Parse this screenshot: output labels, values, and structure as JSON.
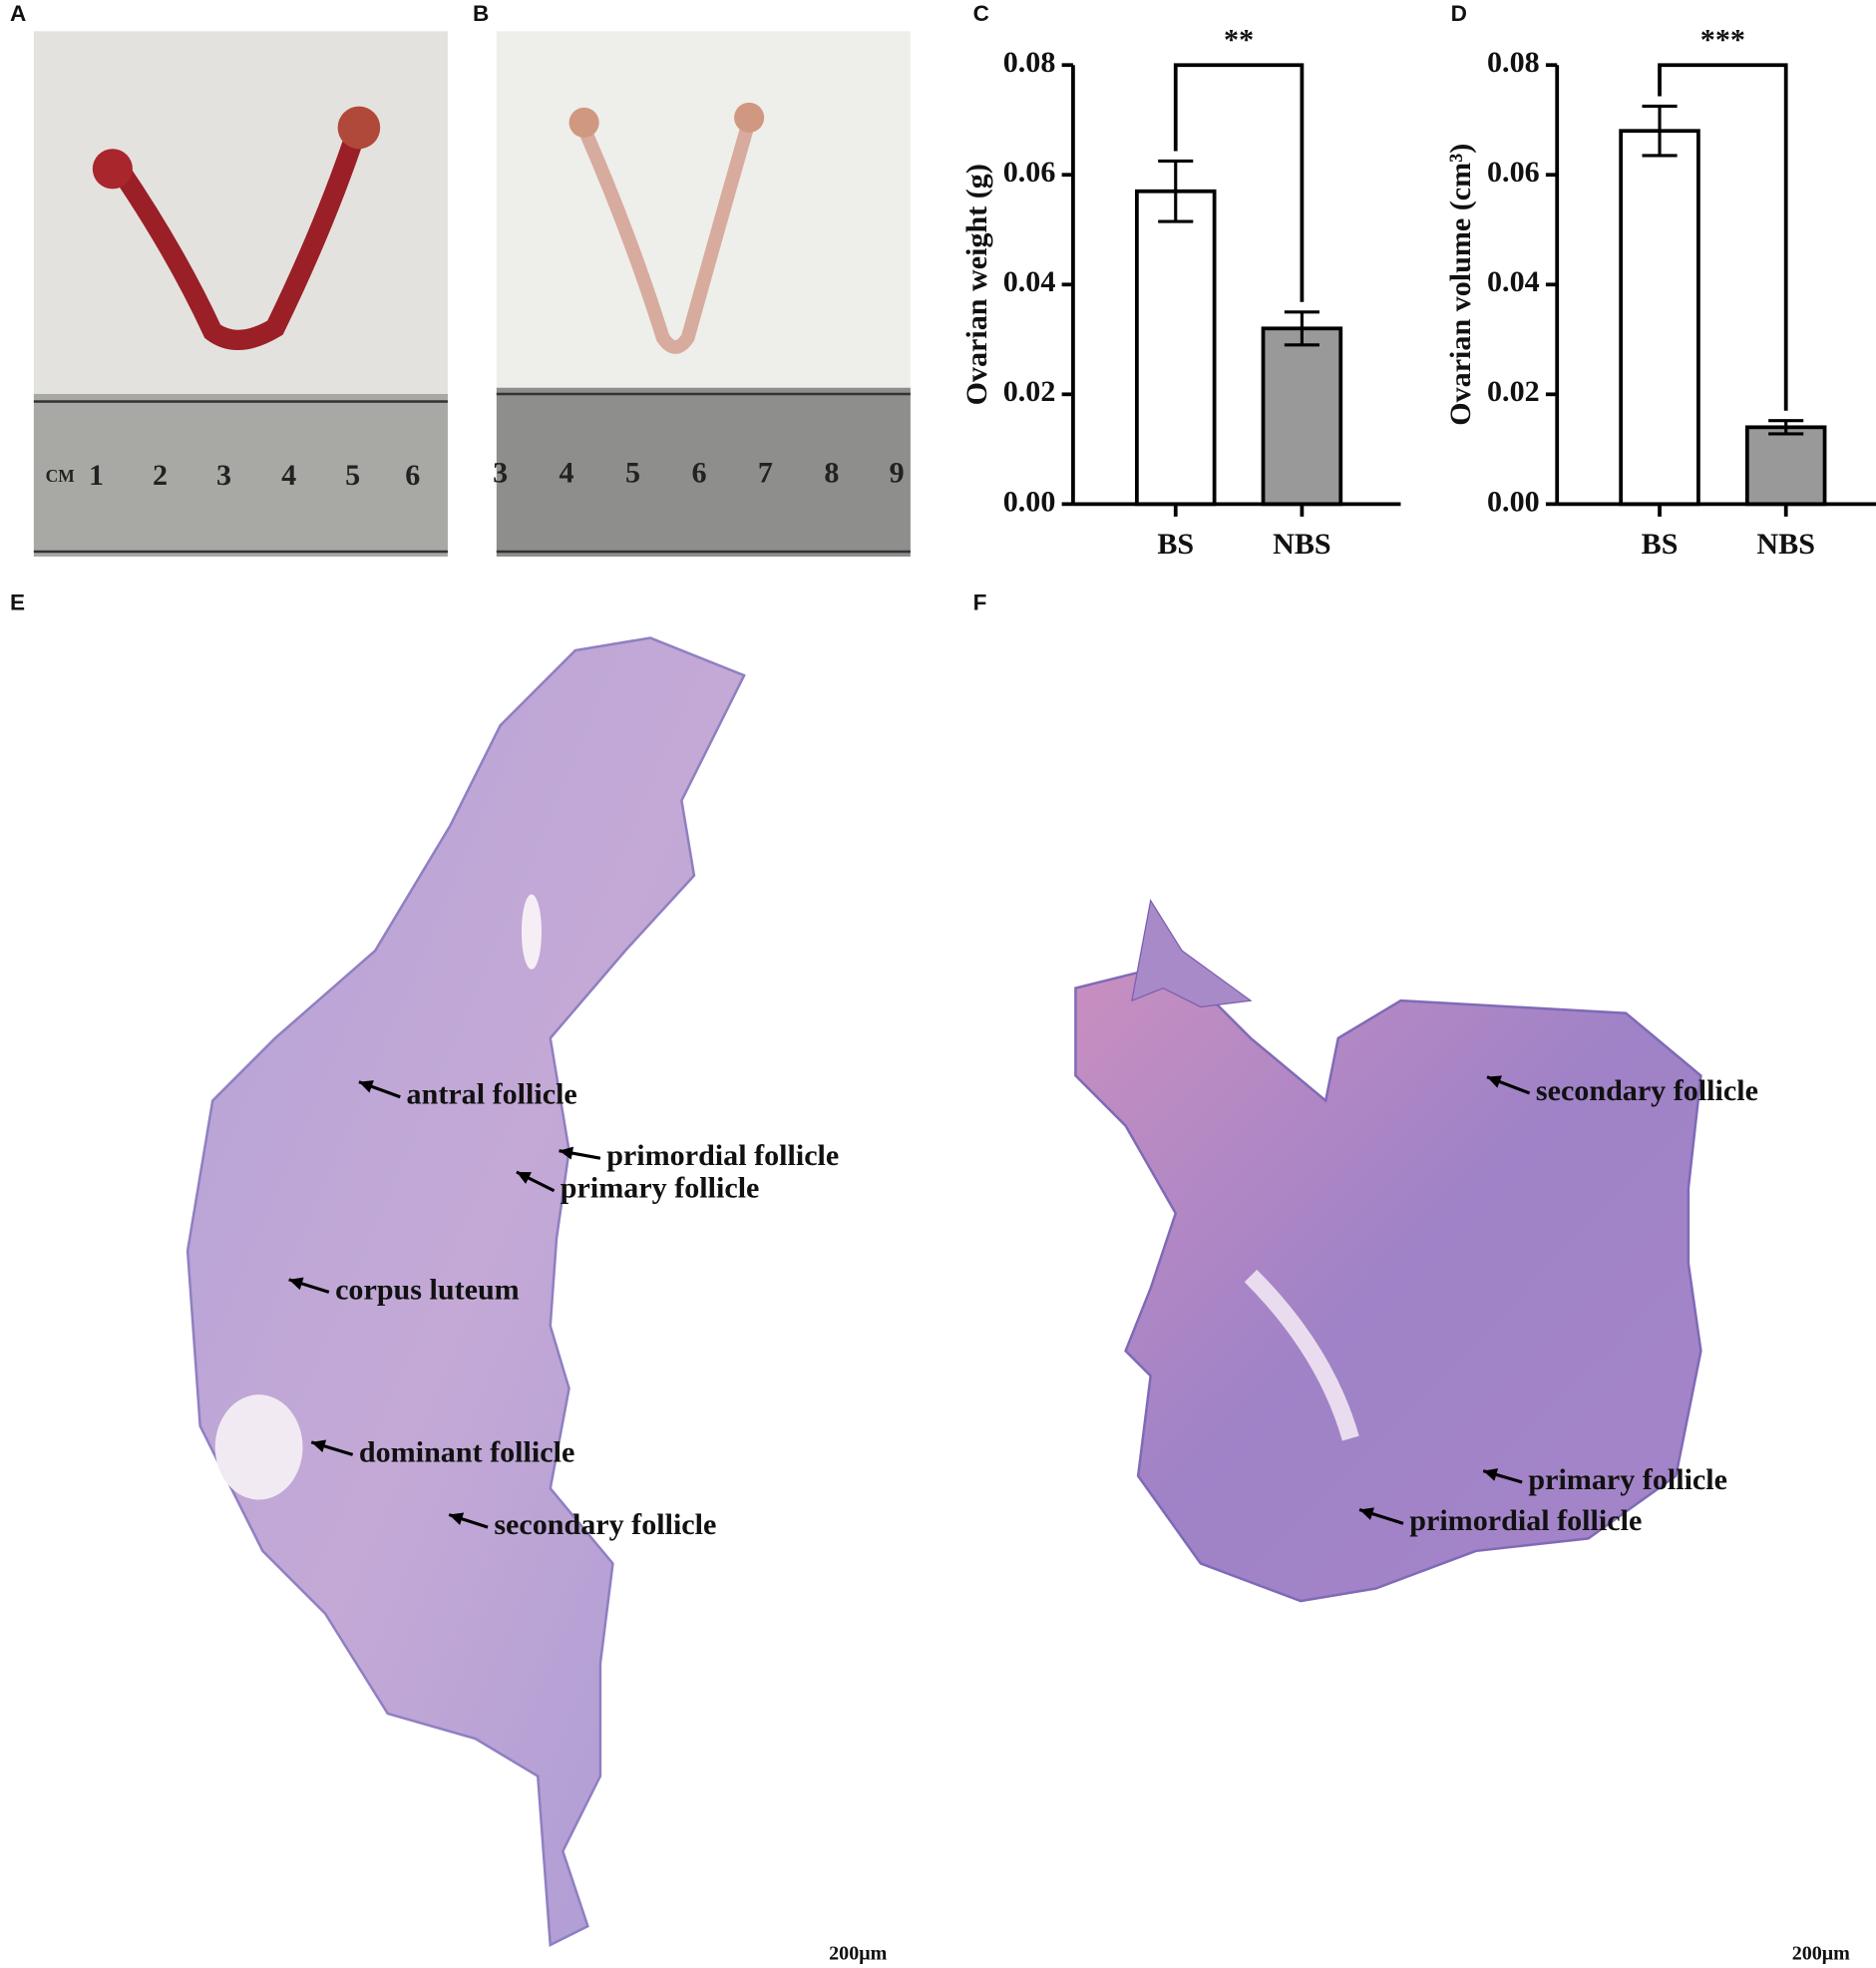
{
  "panel_labels": [
    "A",
    "B",
    "C",
    "D",
    "E",
    "F"
  ],
  "ruler_a": [
    "CM",
    "1",
    "2",
    "3",
    "4",
    "5",
    "6"
  ],
  "ruler_b": [
    "3",
    "4",
    "5",
    "6",
    "7",
    "8",
    "9"
  ],
  "chart_data": [
    {
      "type": "bar",
      "ylabel": "Ovarian weight (g)",
      "categories": [
        "BS",
        "NBS"
      ],
      "values": [
        0.057,
        0.032
      ],
      "errors": [
        0.0055,
        0.003
      ],
      "colors": [
        "#ffffff",
        "#999999"
      ],
      "significance": "**",
      "ylim": [
        0,
        0.08
      ],
      "yticks": [
        {
          "value": 0,
          "label": "0.00"
        },
        {
          "value": 0.02,
          "label": "0.02"
        },
        {
          "value": 0.04,
          "label": "0.04"
        },
        {
          "value": 0.06,
          "label": "0.06"
        },
        {
          "value": 0.08,
          "label": "0.08"
        }
      ]
    },
    {
      "type": "bar",
      "ylabel": "Ovarian volume (cm³)",
      "categories": [
        "BS",
        "NBS"
      ],
      "values": [
        0.068,
        0.014
      ],
      "errors": [
        0.0045,
        0.0012
      ],
      "colors": [
        "#ffffff",
        "#999999"
      ],
      "significance": "***",
      "ylim": [
        0,
        0.08
      ],
      "yticks": [
        {
          "value": 0,
          "label": "0.00"
        },
        {
          "value": 0.02,
          "label": "0.02"
        },
        {
          "value": 0.04,
          "label": "0.04"
        },
        {
          "value": 0.06,
          "label": "0.06"
        },
        {
          "value": 0.08,
          "label": "0.08"
        }
      ]
    }
  ],
  "panel_e": {
    "annotations": [
      "antral follicle",
      "primordial follicle",
      "primary follicle",
      "corpus luteum",
      "dominant follicle",
      "secondary follicle"
    ],
    "scale_bar": "200μm"
  },
  "panel_f": {
    "annotations": [
      "secondary follicle",
      "primary follicle",
      "primordial follicle"
    ],
    "scale_bar": "200μm"
  }
}
